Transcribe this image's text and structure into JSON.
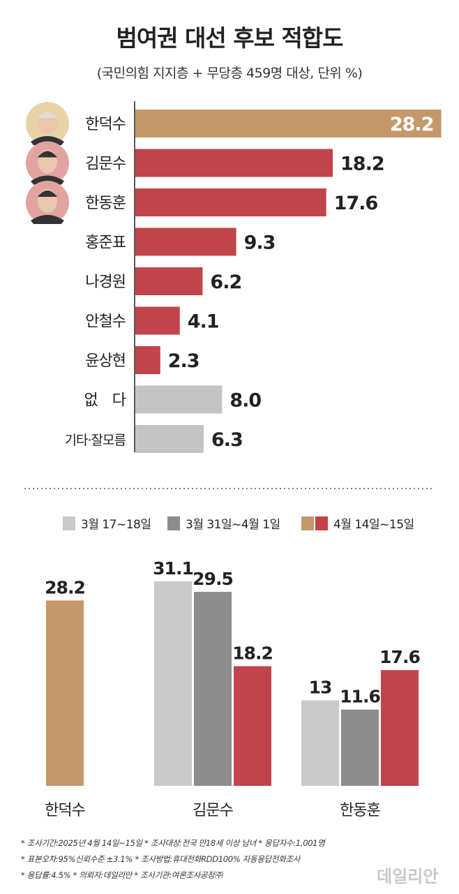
{
  "title": "범여권 대선 후보 적합도",
  "subtitle": "(국민의힘 지지층 + 무당층 459명 대상, 단위 %)",
  "colors": {
    "highlight": "#c4986a",
    "red": "#c0444a",
    "light_gray": "#c9c9c9",
    "dark_gray": "#8c8c8c",
    "none_gray": "#c4c4c4"
  },
  "chart_data": [
    {
      "type": "bar",
      "orientation": "horizontal",
      "title": "범여권 대선 후보 적합도",
      "unit": "%",
      "categories": [
        "한덕수",
        "김문수",
        "한동훈",
        "홍준표",
        "나경원",
        "안철수",
        "윤상현",
        "없　다",
        "기타·잘모름"
      ],
      "values": [
        28.2,
        18.2,
        17.6,
        9.3,
        6.2,
        4.1,
        2.3,
        8.0,
        6.3
      ],
      "labels": [
        "28.2",
        "18.2",
        "17.6",
        "9.3",
        "6.2",
        "4.1",
        "2.3",
        "8.0",
        "6.3"
      ],
      "bar_colors": [
        "highlight",
        "red",
        "red",
        "red",
        "red",
        "red",
        "red",
        "none_gray",
        "none_gray"
      ],
      "photos": [
        "한덕수",
        "김문수",
        "한동훈"
      ]
    },
    {
      "type": "bar",
      "orientation": "vertical",
      "legend": [
        "3월 17~18일",
        "3월 31일~4월 1일",
        "4월 14일~15일"
      ],
      "legend_position": "top",
      "categories": [
        "한덕수",
        "김문수",
        "한동훈"
      ],
      "series": [
        {
          "name": "3월 17~18일",
          "values": [
            null,
            31.1,
            13
          ],
          "labels": [
            null,
            "31.1",
            "13"
          ]
        },
        {
          "name": "3월 31일~4월 1일",
          "values": [
            null,
            29.5,
            11.6
          ],
          "labels": [
            null,
            "29.5",
            "11.6"
          ]
        },
        {
          "name": "4월 14일~15일",
          "values": [
            28.2,
            18.2,
            17.6
          ],
          "labels": [
            "28.2",
            "18.2",
            "17.6"
          ]
        }
      ]
    }
  ],
  "footnotes": [
    "* 조사기간:2025년 4월 14일~15일  * 조사대상:전국 만18세 이상 남녀  * 응답자수:1,001명",
    "* 표본오차:95%신뢰수준 ±3.1%  * 조사방법:휴대전화RDD100% 자동응답전화조사",
    "* 응답률:4.5%  * 의뢰자:데일리안  * 조사기관:여론조사공정㈜"
  ],
  "watermark": "데일리안"
}
